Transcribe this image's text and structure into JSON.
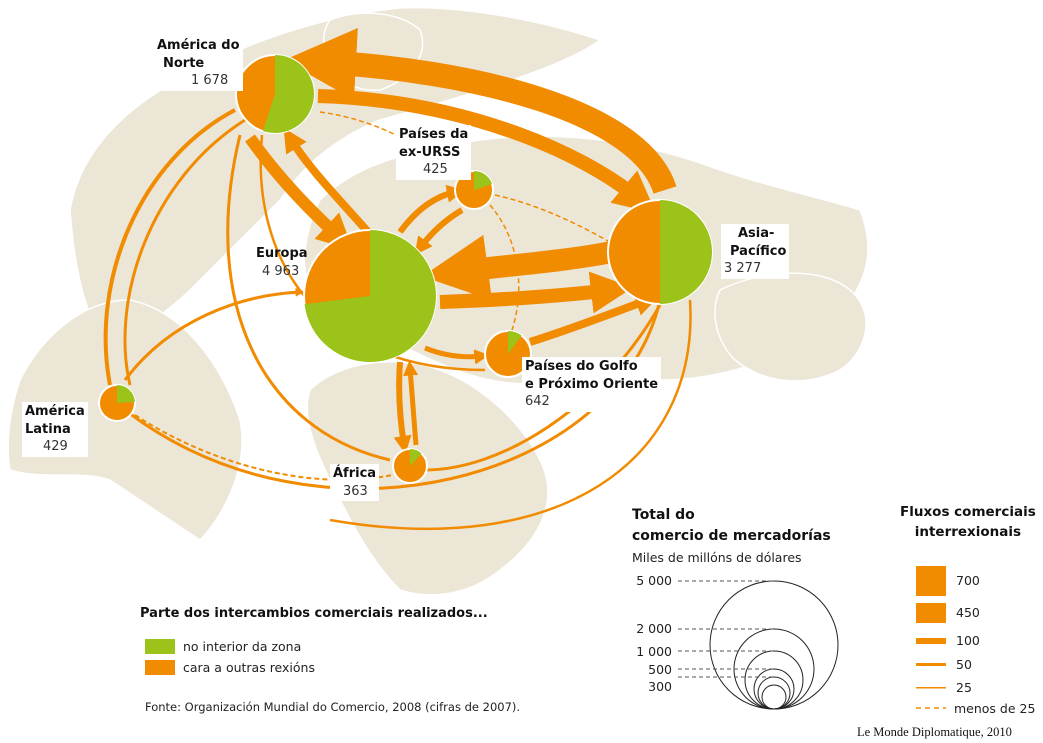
{
  "regions": {
    "north_america": {
      "name": "América do Norte",
      "name_line1": "América do",
      "name_line2": "Norte",
      "value": "1 678",
      "inside_share": 0.55
    },
    "ex_urss": {
      "name": "Países da ex-URSS",
      "name_line1": "Países da",
      "name_line2": "ex-URSS",
      "value": "425",
      "inside_share": 0.2
    },
    "europe": {
      "name": "Europa",
      "value": "4 963",
      "inside_share": 0.73
    },
    "asia_pacific": {
      "name": "Asia-Pacífico",
      "name_line1": "Asia-",
      "name_line2": "Pacífico",
      "value": "3 277",
      "inside_share": 0.5
    },
    "gulf": {
      "name": "Países do Golfo e Próximo Oriente",
      "name_line1": "Países do Golfo",
      "name_line2": "e Próximo Oriente",
      "value": "642",
      "inside_share": 0.1
    },
    "latin_america": {
      "name": "América Latina",
      "name_line1": "América",
      "name_line2": "Latina",
      "value": "429",
      "inside_share": 0.24
    },
    "africa": {
      "name": "África",
      "value": "363",
      "inside_share": 0.12
    }
  },
  "legend_shares": {
    "title": "Parte dos intercambios comerciais realizados...",
    "items": [
      {
        "label": "no interior da zona",
        "color": "#9cc31a"
      },
      {
        "label": "cara a outras rexións",
        "color": "#f18b00"
      }
    ]
  },
  "legend_total": {
    "title_line1": "Total do",
    "title_line2": "comercio de mercadorías",
    "unit": "Miles de millóns de dólares",
    "scale": [
      "5 000",
      "2 000",
      "1 000",
      "500",
      "300"
    ]
  },
  "legend_flows": {
    "title_line1": "Fluxos comerciais",
    "title_line2": "interrexionais",
    "items": [
      "700",
      "450",
      "100",
      "50",
      "25",
      "menos de 25"
    ]
  },
  "source": "Fonte: Organización Mundial do Comercio, 2008 (cifras de 2007).",
  "credit": "Le Monde Diplomatique, 2010",
  "colors": {
    "inside": "#9cc31a",
    "outside": "#f18b00",
    "land": "#ece6d7"
  }
}
